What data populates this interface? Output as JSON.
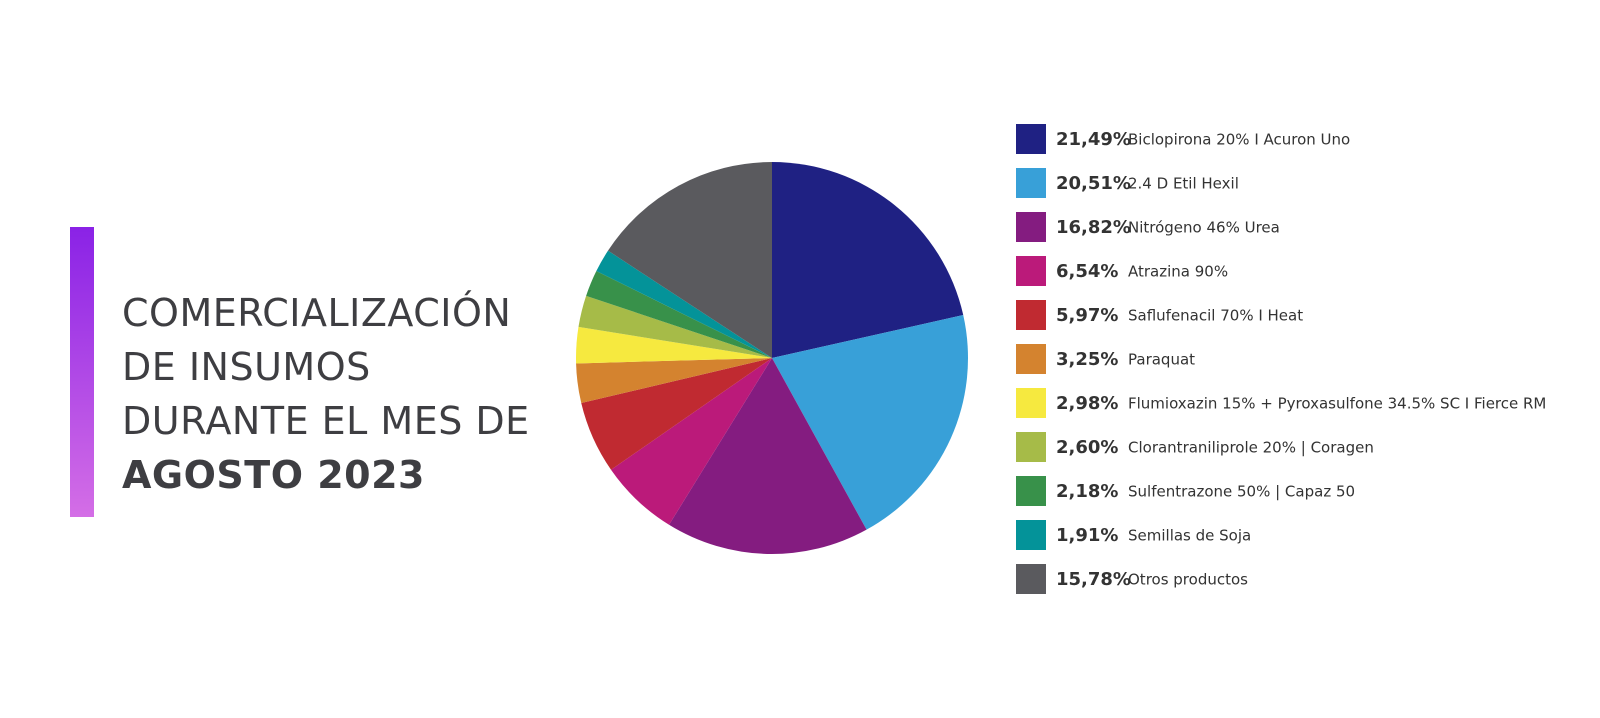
{
  "chart_data": {
    "type": "pie",
    "title": "COMERCIALIZACIÓN DE INSUMOS DURANTE EL MES DE",
    "title_highlight": "AGOSTO 2023",
    "categories": [
      "Biclopirona 20% I Acuron Uno",
      "2.4 D Etil Hexil",
      "Nitrógeno 46% Urea",
      "Atrazina 90%",
      "Saflufenacil 70% I Heat",
      "Paraquat",
      "Flumioxazin 15% + Pyroxasulfone 34.5% SC I Fierce RM",
      "Clorantraniliprole 20% | Coragen",
      "Sulfentrazone 50% | Capaz 50",
      "Semillas de Soja",
      "Otros productos"
    ],
    "values": [
      21.49,
      20.51,
      16.82,
      6.54,
      5.97,
      3.25,
      2.98,
      2.6,
      2.18,
      1.91,
      15.78
    ],
    "value_labels": [
      "21,49%",
      "20,51%",
      "16,82%",
      "6,54%",
      "5,97%",
      "3,25%",
      "2,98%",
      "2,60%",
      "2,18%",
      "1,91%",
      "15,78%"
    ],
    "colors": [
      "#1f2183",
      "#38a0d8",
      "#841c80",
      "#bb1a7a",
      "#c02a31",
      "#d4832f",
      "#f6e93f",
      "#a6bb48",
      "#38914a",
      "#049399",
      "#5a5a5e"
    ]
  }
}
